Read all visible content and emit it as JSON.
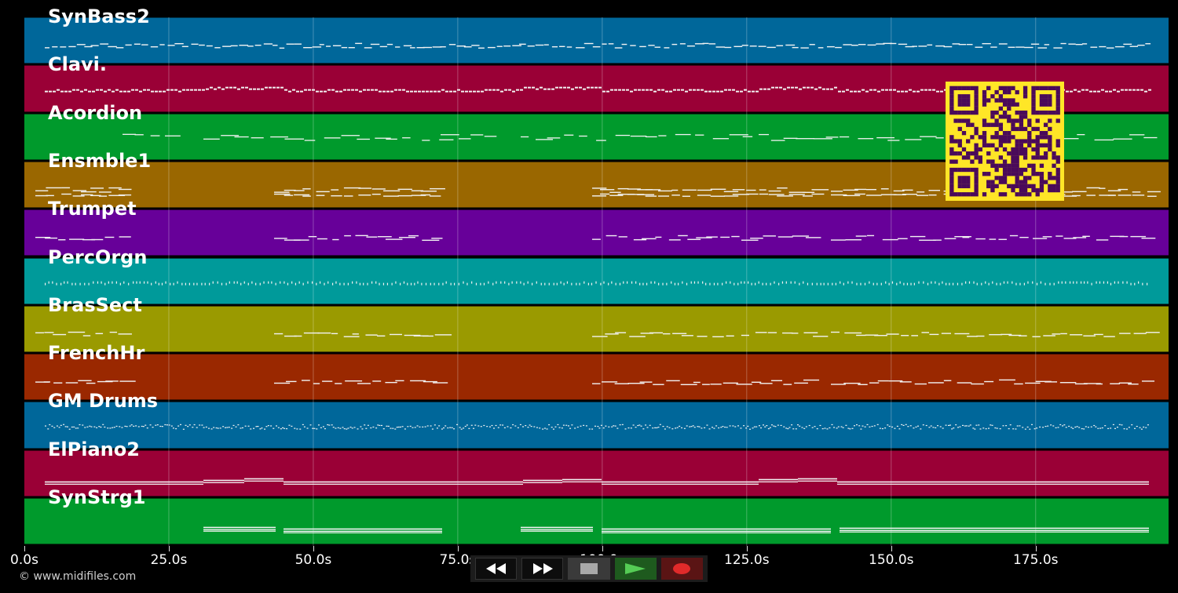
{
  "tracks": [
    {
      "name": "SynBass2",
      "color": "#00679a",
      "pattern": "bass"
    },
    {
      "name": "Clavi.",
      "color": "#9a0036",
      "pattern": "dense"
    },
    {
      "name": "Acordion",
      "color": "#009a2c",
      "pattern": "sparse"
    },
    {
      "name": "Ensmble1",
      "color": "#9a6700",
      "pattern": "sections"
    },
    {
      "name": "Trumpet",
      "color": "#670099",
      "pattern": "sections"
    },
    {
      "name": "PercOrgn",
      "color": "#009a9a",
      "pattern": "dots"
    },
    {
      "name": "BrasSect",
      "color": "#9a9a00",
      "pattern": "sections"
    },
    {
      "name": "FrenchHr",
      "color": "#9a2800",
      "pattern": "sections"
    },
    {
      "name": "GM Drums",
      "color": "#00679a",
      "pattern": "drums"
    },
    {
      "name": "ElPiano2",
      "color": "#9a0036",
      "pattern": "long"
    },
    {
      "name": "SynStrg1",
      "color": "#009a2c",
      "pattern": "strings"
    }
  ],
  "timeline": {
    "max_seconds": 198,
    "ticks": [
      "0.0s",
      "25.0s",
      "50.0s",
      "75.0s",
      "100.0s",
      "125.0s",
      "150.0s",
      "175.0s"
    ],
    "tick_values": [
      0,
      25,
      50,
      75,
      100,
      125,
      150,
      175
    ]
  },
  "copyright": "© www.midifiles.com",
  "transport": {
    "rewind_icon": "rewind-icon",
    "fast_forward_icon": "fast-forward-icon",
    "stop_icon": "stop-icon",
    "play_icon": "play-icon",
    "record_icon": "record-icon"
  },
  "qr_code": {
    "color": "#ffe627",
    "module_color": "#4a0a5a"
  }
}
